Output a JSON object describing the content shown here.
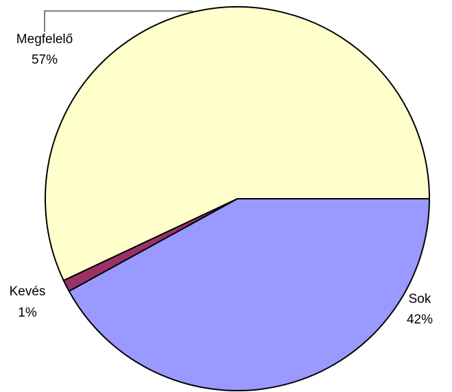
{
  "chart_data": {
    "type": "pie",
    "title": "",
    "slices": [
      {
        "name": "Sok",
        "value": 42,
        "label_pct": "42%",
        "color": "#9999FF"
      },
      {
        "name": "Kevés",
        "value": 1,
        "label_pct": "1%",
        "color": "#993366"
      },
      {
        "name": "Megfelelő",
        "value": 57,
        "label_pct": "57%",
        "color": "#FFFFCC"
      }
    ],
    "start_angle_deg": 0,
    "direction": "clockwise",
    "outline_color": "#000000",
    "legend": "none"
  }
}
